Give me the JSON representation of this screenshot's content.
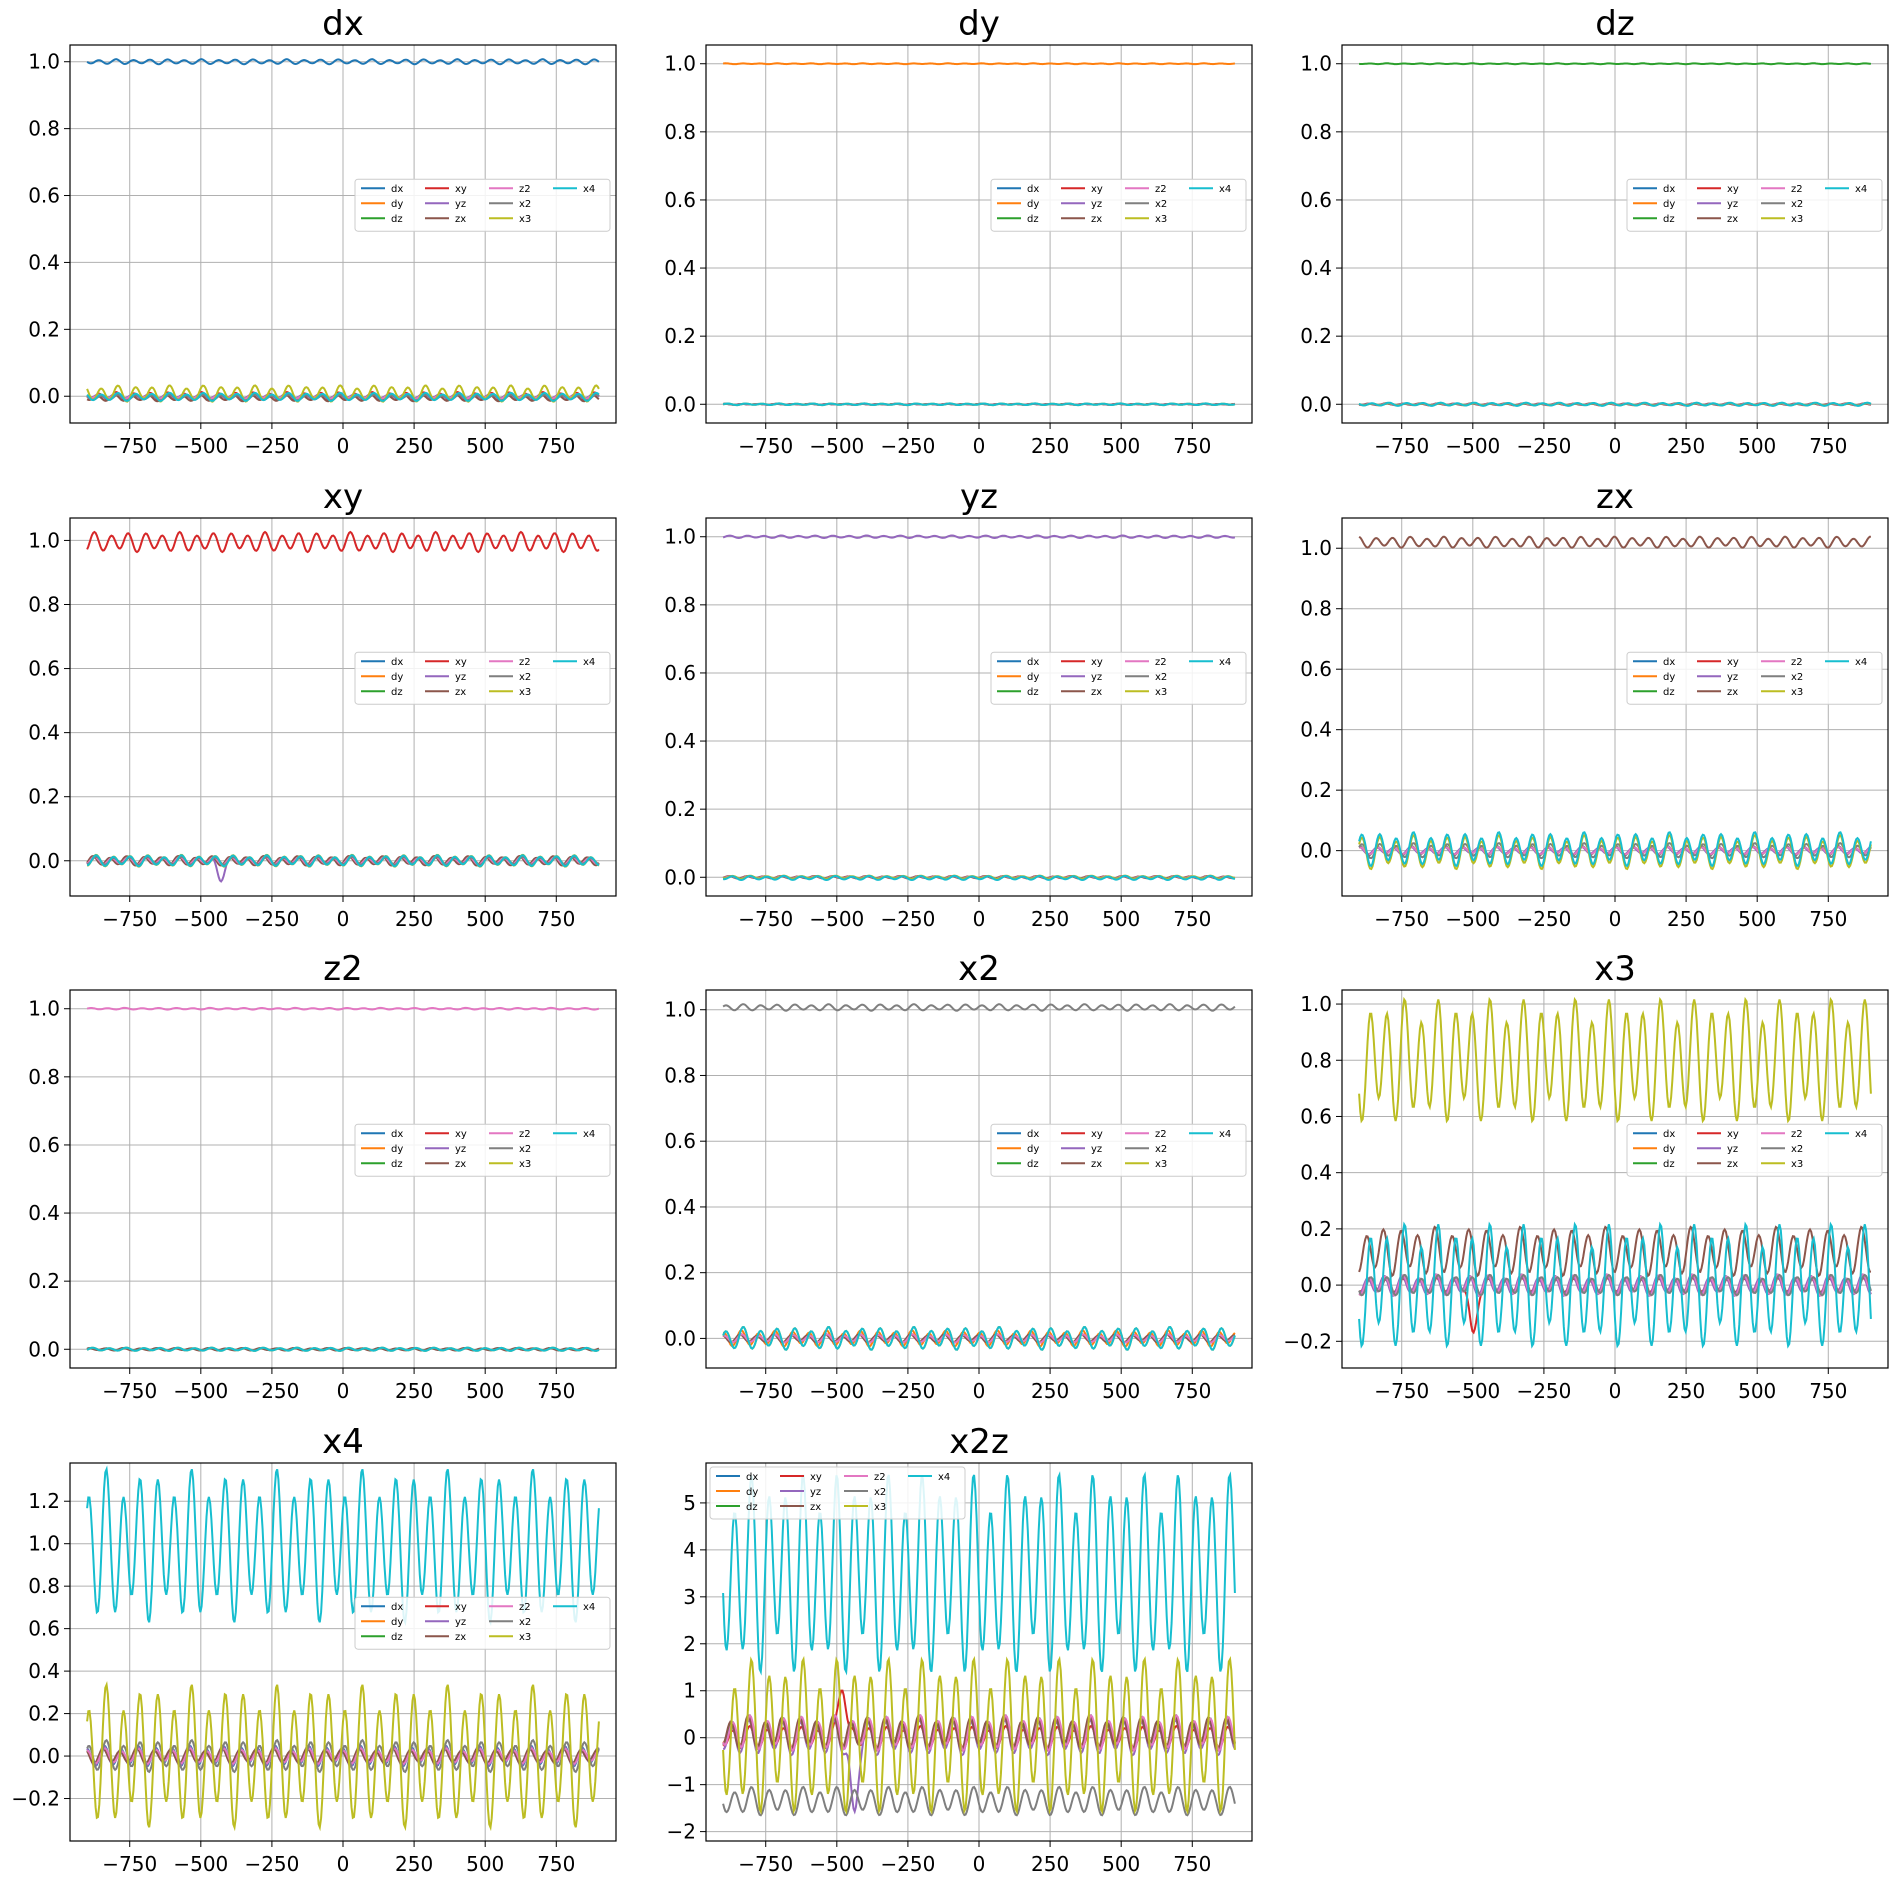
{
  "colors": {
    "dx": "#1f77b4",
    "dy": "#ff7f0e",
    "dz": "#2ca02c",
    "xy": "#d62728",
    "yz": "#9467bd",
    "zx": "#8c564b",
    "z2": "#e377c2",
    "x2": "#7f7f7f",
    "x3": "#bcbd22",
    "x4": "#17becf"
  },
  "chart_data": [
    {
      "type": "line",
      "title": "dx",
      "xlim": [
        -960,
        960
      ],
      "ylim": [
        -0.08,
        1.05
      ],
      "xticks": [
        -750,
        -500,
        -250,
        0,
        250,
        500,
        750
      ],
      "yticks": [
        0.0,
        0.2,
        0.4,
        0.6,
        0.8,
        1.0
      ],
      "grid": true,
      "legend": "center-right",
      "x_range": [
        -900,
        900
      ],
      "series": [
        {
          "name": "dx",
          "baseline": 1.0,
          "amp": 0.006,
          "cycles": 30
        },
        {
          "name": "dy",
          "baseline": 0.0,
          "amp": 0.006,
          "cycles": 30
        },
        {
          "name": "dz",
          "baseline": 0.0,
          "amp": 0.005,
          "cycles": 30
        },
        {
          "name": "xy",
          "baseline": 0.0,
          "amp": 0.01,
          "cycles": 30
        },
        {
          "name": "yz",
          "baseline": 0.0,
          "amp": 0.006,
          "cycles": 30
        },
        {
          "name": "zx",
          "baseline": -0.005,
          "amp": 0.008,
          "cycles": 30
        },
        {
          "name": "z2",
          "baseline": 0.0,
          "amp": 0.006,
          "cycles": 30
        },
        {
          "name": "x2",
          "baseline": -0.004,
          "amp": 0.007,
          "cycles": 30
        },
        {
          "name": "x3",
          "baseline": 0.008,
          "amp": 0.02,
          "cycles": 30
        },
        {
          "name": "x4",
          "baseline": -0.002,
          "amp": 0.01,
          "cycles": 30
        }
      ]
    },
    {
      "type": "line",
      "title": "dy",
      "xlim": [
        -960,
        960
      ],
      "ylim": [
        -0.055,
        1.055
      ],
      "xticks": [
        -750,
        -500,
        -250,
        0,
        250,
        500,
        750
      ],
      "yticks": [
        0.0,
        0.2,
        0.4,
        0.6,
        0.8,
        1.0
      ],
      "grid": true,
      "legend": "center-right",
      "x_range": [
        -900,
        900
      ],
      "series": [
        {
          "name": "dx",
          "baseline": 0.0,
          "amp": 0.001,
          "cycles": 30
        },
        {
          "name": "dy",
          "baseline": 1.0,
          "amp": 0.001,
          "cycles": 30
        },
        {
          "name": "dz",
          "baseline": 0.0,
          "amp": 0.001,
          "cycles": 30
        },
        {
          "name": "xy",
          "baseline": 0.0,
          "amp": 0.001,
          "cycles": 30
        },
        {
          "name": "yz",
          "baseline": 0.0,
          "amp": 0.001,
          "cycles": 30
        },
        {
          "name": "zx",
          "baseline": 0.0,
          "amp": 0.001,
          "cycles": 30
        },
        {
          "name": "z2",
          "baseline": 0.0,
          "amp": 0.001,
          "cycles": 30
        },
        {
          "name": "x2",
          "baseline": 0.0,
          "amp": 0.001,
          "cycles": 30
        },
        {
          "name": "x3",
          "baseline": 0.0,
          "amp": 0.002,
          "cycles": 30
        },
        {
          "name": "x4",
          "baseline": 0.0,
          "amp": 0.002,
          "cycles": 30
        }
      ]
    },
    {
      "type": "line",
      "title": "dz",
      "xlim": [
        -960,
        960
      ],
      "ylim": [
        -0.055,
        1.055
      ],
      "xticks": [
        -750,
        -500,
        -250,
        0,
        250,
        500,
        750
      ],
      "yticks": [
        0.0,
        0.2,
        0.4,
        0.6,
        0.8,
        1.0
      ],
      "grid": true,
      "legend": "center-right",
      "x_range": [
        -900,
        900
      ],
      "series": [
        {
          "name": "dx",
          "baseline": 0.0,
          "amp": 0.002,
          "cycles": 30
        },
        {
          "name": "dy",
          "baseline": 0.0,
          "amp": 0.003,
          "cycles": 30
        },
        {
          "name": "dz",
          "baseline": 1.0,
          "amp": 0.001,
          "cycles": 30
        },
        {
          "name": "xy",
          "baseline": 0.0,
          "amp": 0.002,
          "cycles": 30
        },
        {
          "name": "yz",
          "baseline": 0.0,
          "amp": 0.002,
          "cycles": 30
        },
        {
          "name": "zx",
          "baseline": 0.0,
          "amp": 0.002,
          "cycles": 30
        },
        {
          "name": "z2",
          "baseline": 0.0,
          "amp": 0.002,
          "cycles": 30
        },
        {
          "name": "x2",
          "baseline": 0.0,
          "amp": 0.002,
          "cycles": 30
        },
        {
          "name": "x3",
          "baseline": 0.0,
          "amp": 0.003,
          "cycles": 30
        },
        {
          "name": "x4",
          "baseline": 0.0,
          "amp": 0.004,
          "cycles": 30
        }
      ]
    },
    {
      "type": "line",
      "title": "xy",
      "xlim": [
        -960,
        960
      ],
      "ylim": [
        -0.11,
        1.07
      ],
      "xticks": [
        -750,
        -500,
        -250,
        0,
        250,
        500,
        750
      ],
      "yticks": [
        0.0,
        0.2,
        0.4,
        0.6,
        0.8,
        1.0
      ],
      "grid": true,
      "legend": "center-right",
      "x_range": [
        -900,
        900
      ],
      "series": [
        {
          "name": "dx",
          "baseline": 0.0,
          "amp": 0.012,
          "cycles": 30
        },
        {
          "name": "dy",
          "baseline": 0.0,
          "amp": 0.01,
          "cycles": 30
        },
        {
          "name": "dz",
          "baseline": 0.0,
          "amp": 0.01,
          "cycles": 30
        },
        {
          "name": "xy",
          "baseline": 0.995,
          "amp": 0.025,
          "cycles": 30
        },
        {
          "name": "yz",
          "baseline": 0.0,
          "amp": 0.012,
          "cycles": 30,
          "bump": [
            -430,
            -0.05
          ]
        },
        {
          "name": "zx",
          "baseline": 0.0,
          "amp": 0.012,
          "cycles": 30
        },
        {
          "name": "z2",
          "baseline": 0.0,
          "amp": 0.01,
          "cycles": 30
        },
        {
          "name": "x2",
          "baseline": 0.0,
          "amp": 0.01,
          "cycles": 30
        },
        {
          "name": "x3",
          "baseline": 0.0,
          "amp": 0.015,
          "cycles": 30
        },
        {
          "name": "x4",
          "baseline": 0.0,
          "amp": 0.014,
          "cycles": 30
        }
      ]
    },
    {
      "type": "line",
      "title": "yz",
      "xlim": [
        -960,
        960
      ],
      "ylim": [
        -0.055,
        1.055
      ],
      "xticks": [
        -750,
        -500,
        -250,
        0,
        250,
        500,
        750
      ],
      "yticks": [
        0.0,
        0.2,
        0.4,
        0.6,
        0.8,
        1.0
      ],
      "grid": true,
      "legend": "center-right",
      "x_range": [
        -900,
        900
      ],
      "series": [
        {
          "name": "dx",
          "baseline": 0.0,
          "amp": 0.003,
          "cycles": 30
        },
        {
          "name": "dy",
          "baseline": 0.0,
          "amp": 0.003,
          "cycles": 30
        },
        {
          "name": "dz",
          "baseline": 0.0,
          "amp": 0.003,
          "cycles": 30
        },
        {
          "name": "xy",
          "baseline": 0.0,
          "amp": 0.003,
          "cycles": 30
        },
        {
          "name": "yz",
          "baseline": 1.0,
          "amp": 0.003,
          "cycles": 30
        },
        {
          "name": "zx",
          "baseline": 0.0,
          "amp": 0.003,
          "cycles": 30
        },
        {
          "name": "z2",
          "baseline": 0.0,
          "amp": 0.003,
          "cycles": 30
        },
        {
          "name": "x2",
          "baseline": 0.0,
          "amp": 0.003,
          "cycles": 30
        },
        {
          "name": "x3",
          "baseline": 0.0,
          "amp": 0.004,
          "cycles": 30
        },
        {
          "name": "x4",
          "baseline": -0.002,
          "amp": 0.005,
          "cycles": 30
        }
      ]
    },
    {
      "type": "line",
      "title": "zx",
      "xlim": [
        -960,
        960
      ],
      "ylim": [
        -0.15,
        1.1
      ],
      "xticks": [
        -750,
        -500,
        -250,
        0,
        250,
        500,
        750
      ],
      "yticks": [
        0.0,
        0.2,
        0.4,
        0.6,
        0.8,
        1.0
      ],
      "grid": true,
      "legend": "center-right",
      "x_range": [
        -900,
        900
      ],
      "series": [
        {
          "name": "dx",
          "baseline": 0.0,
          "amp": 0.012,
          "cycles": 30
        },
        {
          "name": "dy",
          "baseline": 0.0,
          "amp": 0.01,
          "cycles": 30
        },
        {
          "name": "dz",
          "baseline": 0.0,
          "amp": 0.012,
          "cycles": 30
        },
        {
          "name": "xy",
          "baseline": 0.0,
          "amp": 0.01,
          "cycles": 30
        },
        {
          "name": "yz",
          "baseline": 0.0,
          "amp": 0.01,
          "cycles": 30
        },
        {
          "name": "zx",
          "baseline": 1.02,
          "amp": 0.015,
          "cycles": 30
        },
        {
          "name": "z2",
          "baseline": 0.0,
          "amp": 0.01,
          "cycles": 30
        },
        {
          "name": "x2",
          "baseline": 0.0,
          "amp": 0.02,
          "cycles": 30
        },
        {
          "name": "x3",
          "baseline": -0.005,
          "amp": 0.045,
          "cycles": 30
        },
        {
          "name": "x4",
          "baseline": 0.005,
          "amp": 0.045,
          "cycles": 30
        }
      ]
    },
    {
      "type": "line",
      "title": "z2",
      "xlim": [
        -960,
        960
      ],
      "ylim": [
        -0.055,
        1.055
      ],
      "xticks": [
        -750,
        -500,
        -250,
        0,
        250,
        500,
        750
      ],
      "yticks": [
        0.0,
        0.2,
        0.4,
        0.6,
        0.8,
        1.0
      ],
      "grid": true,
      "legend": "center-right",
      "x_range": [
        -900,
        900
      ],
      "series": [
        {
          "name": "dx",
          "baseline": 0.0,
          "amp": 0.003,
          "cycles": 30
        },
        {
          "name": "dy",
          "baseline": 0.0,
          "amp": 0.003,
          "cycles": 30
        },
        {
          "name": "dz",
          "baseline": 0.0,
          "amp": 0.003,
          "cycles": 30
        },
        {
          "name": "xy",
          "baseline": 0.0,
          "amp": 0.003,
          "cycles": 30
        },
        {
          "name": "yz",
          "baseline": 0.0,
          "amp": 0.003,
          "cycles": 30
        },
        {
          "name": "zx",
          "baseline": 0.0,
          "amp": 0.003,
          "cycles": 30
        },
        {
          "name": "z2",
          "baseline": 1.0,
          "amp": 0.002,
          "cycles": 30
        },
        {
          "name": "x2",
          "baseline": 0.0,
          "amp": 0.003,
          "cycles": 30
        },
        {
          "name": "x3",
          "baseline": 0.0,
          "amp": 0.004,
          "cycles": 30
        },
        {
          "name": "x4",
          "baseline": 0.0,
          "amp": 0.004,
          "cycles": 30
        }
      ]
    },
    {
      "type": "line",
      "title": "x2",
      "xlim": [
        -960,
        960
      ],
      "ylim": [
        -0.09,
        1.06
      ],
      "xticks": [
        -750,
        -500,
        -250,
        0,
        250,
        500,
        750
      ],
      "yticks": [
        0.0,
        0.2,
        0.4,
        0.6,
        0.8,
        1.0
      ],
      "grid": true,
      "legend": "center-right",
      "x_range": [
        -900,
        900
      ],
      "series": [
        {
          "name": "dx",
          "baseline": 0.0,
          "amp": 0.01,
          "cycles": 30
        },
        {
          "name": "dy",
          "baseline": 0.0,
          "amp": 0.02,
          "cycles": 30
        },
        {
          "name": "dz",
          "baseline": 0.0,
          "amp": 0.01,
          "cycles": 30
        },
        {
          "name": "xy",
          "baseline": 0.0,
          "amp": 0.01,
          "cycles": 30
        },
        {
          "name": "yz",
          "baseline": 0.0,
          "amp": 0.01,
          "cycles": 30
        },
        {
          "name": "zx",
          "baseline": 0.0,
          "amp": 0.01,
          "cycles": 30
        },
        {
          "name": "z2",
          "baseline": 0.0,
          "amp": 0.01,
          "cycles": 30
        },
        {
          "name": "x2",
          "baseline": 1.007,
          "amp": 0.008,
          "cycles": 30
        },
        {
          "name": "x3",
          "baseline": 0.0,
          "amp": 0.028,
          "cycles": 30
        },
        {
          "name": "x4",
          "baseline": 0.0,
          "amp": 0.028,
          "cycles": 30
        }
      ]
    },
    {
      "type": "line",
      "title": "x3",
      "xlim": [
        -960,
        960
      ],
      "ylim": [
        -0.295,
        1.05
      ],
      "xticks": [
        -750,
        -500,
        -250,
        0,
        250,
        500,
        750
      ],
      "yticks": [
        -0.2,
        0.0,
        0.2,
        0.4,
        0.6,
        0.8,
        1.0
      ],
      "grid": true,
      "legend": "center-right",
      "x_range": [
        -900,
        900
      ],
      "series": [
        {
          "name": "dx",
          "baseline": 0.0,
          "amp": 0.03,
          "cycles": 30
        },
        {
          "name": "dy",
          "baseline": 0.0,
          "amp": 0.03,
          "cycles": 30
        },
        {
          "name": "dz",
          "baseline": 0.0,
          "amp": 0.03,
          "cycles": 30
        },
        {
          "name": "xy",
          "baseline": 0.0,
          "amp": 0.02,
          "cycles": 30,
          "bump": [
            -500,
            -0.18
          ]
        },
        {
          "name": "yz",
          "baseline": 0.0,
          "amp": 0.03,
          "cycles": 30
        },
        {
          "name": "zx",
          "baseline": 0.12,
          "amp": 0.07,
          "cycles": 30
        },
        {
          "name": "z2",
          "baseline": 0.0,
          "amp": 0.03,
          "cycles": 30
        },
        {
          "name": "x2",
          "baseline": 0.0,
          "amp": 0.03,
          "cycles": 30
        },
        {
          "name": "x3",
          "baseline": 0.8,
          "amp": 0.18,
          "cycles": 30
        },
        {
          "name": "x4",
          "baseline": 0.0,
          "amp": 0.18,
          "cycles": 30
        }
      ]
    },
    {
      "type": "line",
      "title": "x4",
      "xlim": [
        -960,
        960
      ],
      "ylim": [
        -0.4,
        1.38
      ],
      "xticks": [
        -750,
        -500,
        -250,
        0,
        250,
        500,
        750
      ],
      "yticks": [
        -0.2,
        0.0,
        0.2,
        0.4,
        0.6,
        0.8,
        1.0,
        1.2
      ],
      "grid": true,
      "legend": "center-right",
      "x_range": [
        -900,
        900
      ],
      "series": [
        {
          "name": "dx",
          "baseline": 0.0,
          "amp": 0.04,
          "cycles": 30
        },
        {
          "name": "dy",
          "baseline": 0.0,
          "amp": 0.03,
          "cycles": 30
        },
        {
          "name": "dz",
          "baseline": 0.0,
          "amp": 0.03,
          "cycles": 30
        },
        {
          "name": "xy",
          "baseline": 0.0,
          "amp": 0.03,
          "cycles": 30
        },
        {
          "name": "yz",
          "baseline": 0.0,
          "amp": 0.04,
          "cycles": 30
        },
        {
          "name": "zx",
          "baseline": 0.0,
          "amp": 0.03,
          "cycles": 30
        },
        {
          "name": "z2",
          "baseline": 0.0,
          "amp": 0.03,
          "cycles": 30
        },
        {
          "name": "x2",
          "baseline": 0.0,
          "amp": 0.06,
          "cycles": 30
        },
        {
          "name": "x3",
          "baseline": 0.0,
          "amp": 0.27,
          "cycles": 30
        },
        {
          "name": "x4",
          "baseline": 0.99,
          "amp": 0.29,
          "cycles": 30
        }
      ]
    },
    {
      "type": "line",
      "title": "x2z",
      "xlim": [
        -960,
        960
      ],
      "ylim": [
        -2.2,
        5.85
      ],
      "xticks": [
        -750,
        -500,
        -250,
        0,
        250,
        500,
        750
      ],
      "yticks": [
        -2,
        -1,
        0,
        1,
        2,
        3,
        4,
        5
      ],
      "grid": true,
      "legend": "upper-left",
      "x_range": [
        -900,
        900
      ],
      "series": [
        {
          "name": "dx",
          "baseline": 0.1,
          "amp": 0.3,
          "cycles": 30
        },
        {
          "name": "dy",
          "baseline": 0.1,
          "amp": 0.25,
          "cycles": 30
        },
        {
          "name": "dz",
          "baseline": 0.1,
          "amp": 0.3,
          "cycles": 30
        },
        {
          "name": "xy",
          "baseline": 0.0,
          "amp": 0.2,
          "cycles": 30,
          "bump": [
            -480,
            1.2
          ]
        },
        {
          "name": "yz",
          "baseline": 0.0,
          "amp": 0.3,
          "cycles": 30,
          "bump": [
            -440,
            -1.7
          ]
        },
        {
          "name": "zx",
          "baseline": 0.1,
          "amp": 0.3,
          "cycles": 30
        },
        {
          "name": "z2",
          "baseline": 0.1,
          "amp": 0.3,
          "cycles": 30
        },
        {
          "name": "x2",
          "baseline": -1.35,
          "amp": 0.25,
          "cycles": 30
        },
        {
          "name": "x3",
          "baseline": 0.05,
          "amp": 1.35,
          "cycles": 30
        },
        {
          "name": "x4",
          "baseline": 3.5,
          "amp": 1.75,
          "cycles": 30
        }
      ]
    }
  ]
}
